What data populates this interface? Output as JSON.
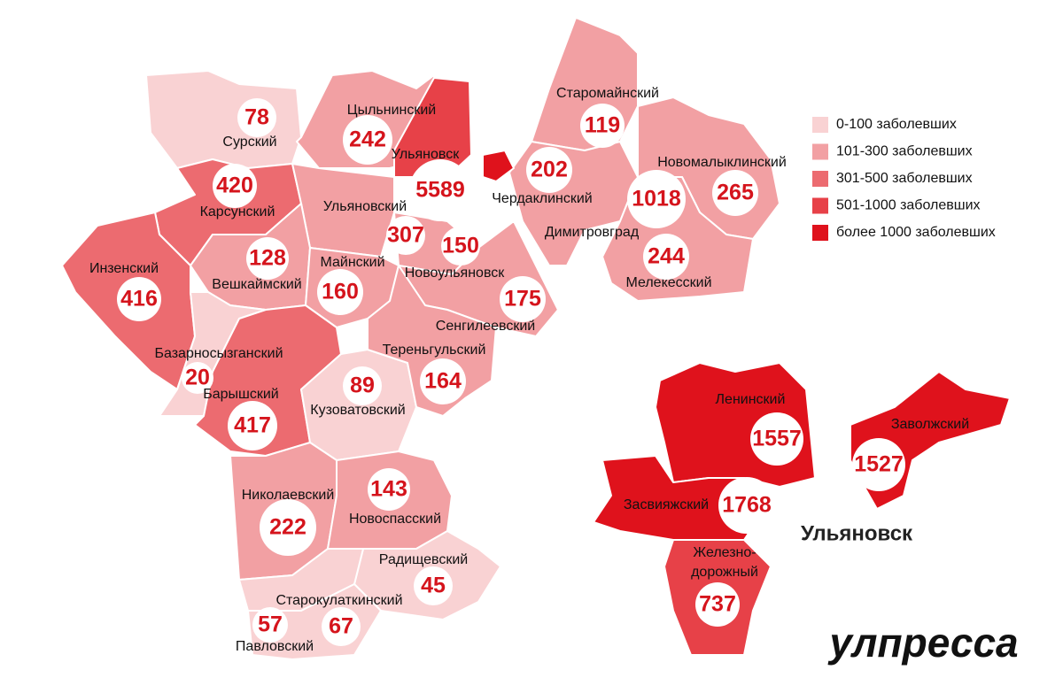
{
  "legend": [
    {
      "label": "0-100 заболевших",
      "color": "#f9d2d3"
    },
    {
      "label": "101-300 заболевших",
      "color": "#f2a0a3"
    },
    {
      "label": "301-500 заболевших",
      "color": "#ec6b70"
    },
    {
      "label": "501-1000 заболевших",
      "color": "#e74148"
    },
    {
      "label": "более 1000 заболевших",
      "color": "#df121c"
    }
  ],
  "regions": [
    {
      "name": "Сурский",
      "cases": 78
    },
    {
      "name": "Цыльнинский",
      "cases": 242
    },
    {
      "name": "Ульяновск",
      "cases": 5589
    },
    {
      "name": "Карсунский",
      "cases": 420
    },
    {
      "name": "Ульяновский",
      "cases": 307
    },
    {
      "name": "Новоульяновск",
      "cases": 150
    },
    {
      "name": "Инзенский",
      "cases": 416
    },
    {
      "name": "Вешкаймский",
      "cases": 128
    },
    {
      "name": "Майнский",
      "cases": 160
    },
    {
      "name": "Сенгилеевский",
      "cases": 175
    },
    {
      "name": "Базарносызганский",
      "cases": 20
    },
    {
      "name": "Барышский",
      "cases": 417
    },
    {
      "name": "Кузоватовский",
      "cases": 89
    },
    {
      "name": "Тереньгульский",
      "cases": 164
    },
    {
      "name": "Николаевский",
      "cases": 222
    },
    {
      "name": "Новоспасский",
      "cases": 143
    },
    {
      "name": "Радищевский",
      "cases": 45
    },
    {
      "name": "Старокулаткинский",
      "cases": 57
    },
    {
      "name": "Павловский",
      "cases": 67
    },
    {
      "name": "Старомайнский",
      "cases": 119
    },
    {
      "name": "Чердаклинский",
      "cases": 202
    },
    {
      "name": "Новомалыклинский",
      "cases": 265
    },
    {
      "name": "Димитровград",
      "cases": 1018
    },
    {
      "name": "Мелекесский",
      "cases": 244
    }
  ],
  "city": {
    "title": "Ульяновск",
    "districts": [
      {
        "name": "Ленинский",
        "cases": 1557
      },
      {
        "name": "Заволжский",
        "cases": 1527
      },
      {
        "name": "Засвияжский",
        "cases": 1768
      },
      {
        "name": [
          "Железно-",
          "дорожный"
        ],
        "cases": 737
      }
    ]
  },
  "logo": "улпресса"
}
